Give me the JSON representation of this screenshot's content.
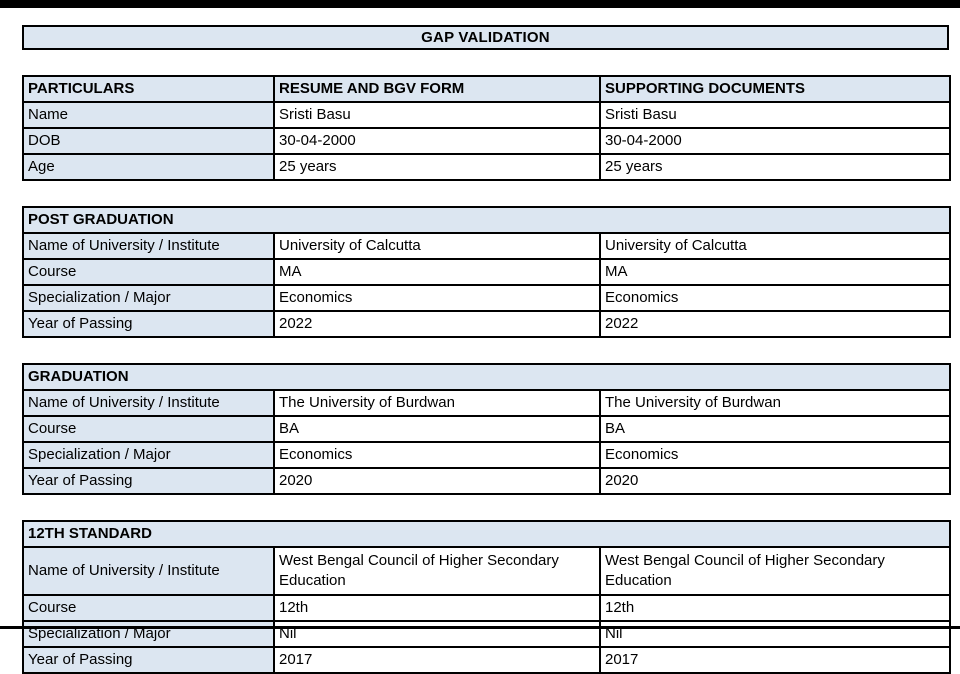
{
  "page": {
    "title": "GAP VALIDATION"
  },
  "colors": {
    "fill": "#dce6f1",
    "border": "#000000",
    "text": "#000000"
  },
  "particulars_table": {
    "headers": [
      "PARTICULARS",
      "RESUME AND BGV FORM",
      "SUPPORTING DOCUMENTS"
    ],
    "rows": [
      {
        "label": "Name",
        "resume": "Sristi Basu",
        "supporting": "Sristi Basu"
      },
      {
        "label": "DOB",
        "resume": "30-04-2000",
        "supporting": "30-04-2000"
      },
      {
        "label": "Age",
        "resume": "25 years",
        "supporting": "25 years"
      }
    ]
  },
  "sections": [
    {
      "heading": "POST GRADUATION",
      "rows": [
        {
          "label": "Name of University / Institute",
          "resume": "University of Calcutta",
          "supporting": "University of Calcutta"
        },
        {
          "label": "Course",
          "resume": "MA",
          "supporting": "MA"
        },
        {
          "label": "Specialization / Major",
          "resume": "Economics",
          "supporting": "Economics"
        },
        {
          "label": "Year of Passing",
          "resume": "2022",
          "supporting": "2022"
        }
      ]
    },
    {
      "heading": "GRADUATION",
      "rows": [
        {
          "label": "Name of University / Institute",
          "resume": "The University of Burdwan",
          "supporting": "The University of Burdwan"
        },
        {
          "label": "Course",
          "resume": "BA",
          "supporting": "BA"
        },
        {
          "label": "Specialization / Major",
          "resume": "Economics",
          "supporting": "Economics"
        },
        {
          "label": "Year of Passing",
          "resume": "2020",
          "supporting": "2020"
        }
      ]
    },
    {
      "heading": "12TH STANDARD",
      "rows": [
        {
          "label": "Name of University / Institute",
          "resume": "West Bengal Council of Higher Secondary Education",
          "supporting": "West Bengal Council of Higher Secondary Education"
        },
        {
          "label": "Course",
          "resume": "12th",
          "supporting": "12th"
        },
        {
          "label": "Specialization / Major",
          "resume": "Nil",
          "supporting": "Nil"
        },
        {
          "label": "Year of Passing",
          "resume": "2017",
          "supporting": "2017"
        }
      ]
    }
  ]
}
